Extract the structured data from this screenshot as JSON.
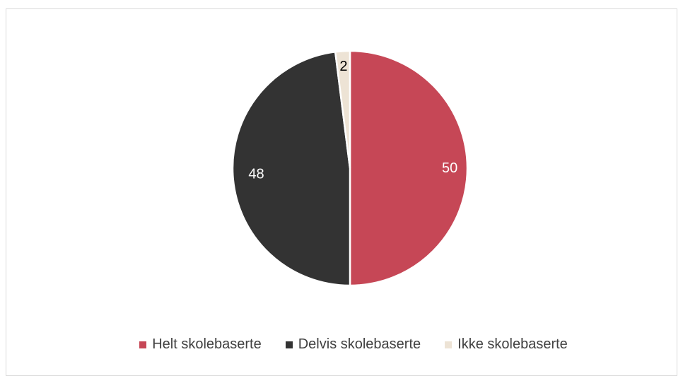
{
  "chart_data": {
    "type": "pie",
    "title": "",
    "categories": [
      "Helt skolebaserte",
      "Delvis skolebaserte",
      "Ikke skolebaserte"
    ],
    "values": [
      50,
      48,
      2
    ],
    "colors": [
      "#c64756",
      "#333333",
      "#ede3d5"
    ],
    "label_colors": [
      "#ffffff",
      "#ffffff",
      "#000000"
    ],
    "legend_position": "bottom"
  }
}
